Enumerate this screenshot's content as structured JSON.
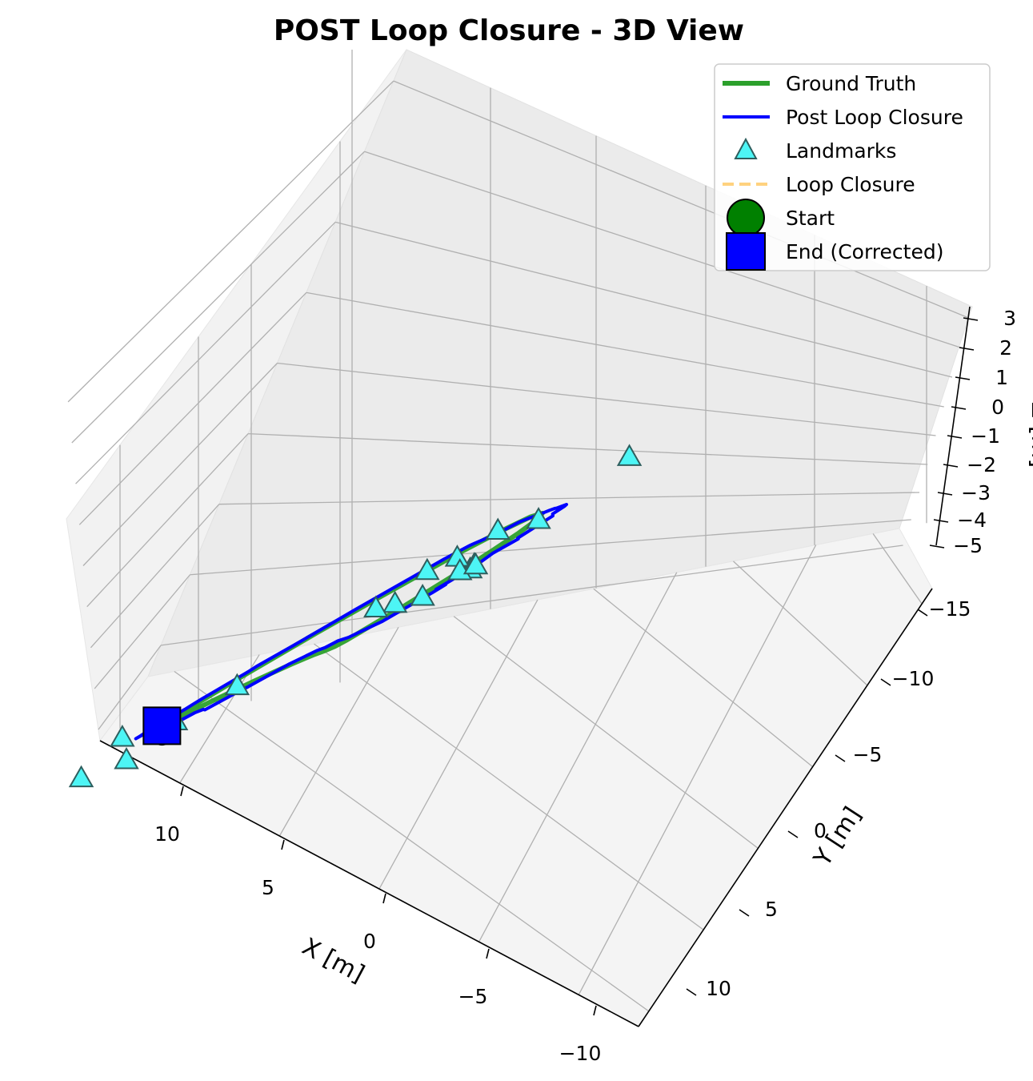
{
  "chart_data": {
    "type": "line",
    "projection": "3d",
    "title": "POST Loop Closure - 3D View",
    "xlabel": "X [m]",
    "ylabel": "Y [m]",
    "zlabel": "Z [m]",
    "x_ticks": [
      "10",
      "5",
      "0",
      "−5",
      "−10"
    ],
    "y_ticks": [
      "−15",
      "−10",
      "−5",
      "0",
      "5",
      "10"
    ],
    "z_ticks": [
      "3",
      "2",
      "1",
      "0",
      "−1",
      "−2",
      "−3",
      "−4",
      "−5"
    ],
    "xlim": [
      14,
      -12
    ],
    "ylim": [
      -17,
      13
    ],
    "zlim": [
      -5,
      3
    ],
    "grid": true,
    "legend_position": "top-right",
    "legend": [
      {
        "label": "Ground Truth",
        "kind": "line",
        "color": "#2ca02c"
      },
      {
        "label": "Post Loop Closure",
        "kind": "line",
        "color": "#0000ff"
      },
      {
        "label": "Landmarks",
        "kind": "triangle",
        "color": "#4df5f5"
      },
      {
        "label": "Loop Closure",
        "kind": "dashed",
        "color": "#ffd27f"
      },
      {
        "label": "Start",
        "kind": "circle",
        "color": "#008000"
      },
      {
        "label": "End (Corrected)",
        "kind": "square",
        "color": "#0000ff"
      }
    ],
    "series": [
      {
        "name": "Ground Truth",
        "color": "#2ca02c",
        "points": [
          [
            6.8,
            -4.3
          ],
          [
            3.6,
            -5.6
          ],
          [
            0.5,
            -7.3
          ],
          [
            -2.5,
            -9.3
          ],
          [
            -4.6,
            -11.0
          ],
          [
            -6.0,
            -12.4
          ],
          [
            -6.9,
            -13.1
          ],
          [
            -7.5,
            -13.1
          ],
          [
            -8.7,
            -10.6
          ],
          [
            -9.3,
            -7.3
          ],
          [
            -9.4,
            -4.2
          ],
          [
            -9.1,
            -1.5
          ],
          [
            -8.4,
            1.3
          ],
          [
            -7.2,
            3.7
          ],
          [
            -5.5,
            5.6
          ],
          [
            -3.6,
            6.6
          ],
          [
            -1.3,
            6.9
          ],
          [
            1.7,
            5.4
          ],
          [
            3.9,
            3.6
          ],
          [
            5.8,
            0.7
          ],
          [
            7.1,
            -2.5
          ],
          [
            7.1,
            -3.4
          ],
          [
            6.8,
            -4.3
          ]
        ]
      },
      {
        "name": "Post Loop Closure",
        "color": "#0000ff",
        "points": [
          [
            7.9,
            -3.5
          ],
          [
            7.5,
            -4.0
          ],
          [
            7.4,
            -4.7
          ],
          [
            6.6,
            -5.0
          ],
          [
            6.7,
            -5.5
          ],
          [
            5.7,
            -6.2
          ],
          [
            5.2,
            -6.1
          ],
          [
            5.4,
            -6.3
          ],
          [
            4.9,
            -6.6
          ],
          [
            5.5,
            -6.6
          ],
          [
            3.9,
            -7.5
          ],
          [
            3.3,
            -7.5
          ],
          [
            2.4,
            -8.3
          ],
          [
            1.8,
            -9.2
          ],
          [
            0.5,
            -8.9
          ],
          [
            -0.3,
            -9.1
          ],
          [
            -1.9,
            -8.4
          ],
          [
            -3.8,
            -9.3
          ],
          [
            -4.7,
            -10.2
          ],
          [
            -5.4,
            -10.3
          ],
          [
            -6.8,
            -11.8
          ],
          [
            -7.8,
            -12.3
          ],
          [
            -9.3,
            -13.2
          ],
          [
            -9.6,
            -12.8
          ],
          [
            -10.8,
            -11.6
          ],
          [
            -11.0,
            -10.8
          ],
          [
            -10.4,
            -10.6
          ],
          [
            -11.2,
            -8.9
          ],
          [
            -10.6,
            -8.3
          ],
          [
            -11.0,
            -7.8
          ],
          [
            -10.6,
            -6.2
          ],
          [
            -11.5,
            -5.6
          ],
          [
            -11.0,
            -4.8
          ],
          [
            -11.2,
            -2.2
          ],
          [
            -10.3,
            -0.7
          ],
          [
            -10.3,
            0.3
          ],
          [
            -10.1,
            0.8
          ],
          [
            -8.9,
            2.0
          ],
          [
            -8.6,
            2.4
          ],
          [
            -7.9,
            3.1
          ],
          [
            -6.9,
            4.0
          ],
          [
            -5.6,
            5.3
          ],
          [
            -4.6,
            6.2
          ],
          [
            -3.4,
            6.3
          ],
          [
            -1.3,
            8.0
          ],
          [
            -1.0,
            8.2
          ],
          [
            0.3,
            8.2
          ],
          [
            1.3,
            7.4
          ],
          [
            2.1,
            6.7
          ],
          [
            3.2,
            5.7
          ],
          [
            3.9,
            4.6
          ],
          [
            4.9,
            3.4
          ],
          [
            6.1,
            2.4
          ],
          [
            6.1,
            1.8
          ],
          [
            6.5,
            1.2
          ],
          [
            7.3,
            -0.1
          ],
          [
            7.4,
            -0.6
          ],
          [
            7.5,
            -1.2
          ],
          [
            8.5,
            -2.5
          ],
          [
            8.4,
            -3.4
          ],
          [
            8.5,
            -3.6
          ],
          [
            8.0,
            -3.5
          ],
          [
            7.9,
            -3.5
          ]
        ]
      }
    ],
    "landmarks": [
      [
        11.8,
        -14.4
      ],
      [
        13.0,
        -13.0
      ],
      [
        12.6,
        -10.3
      ],
      [
        6.7,
        -11.2
      ],
      [
        2.0,
        -15.4
      ],
      [
        5.0,
        -6.2
      ],
      [
        3.1,
        -4.3
      ],
      [
        -9.8,
        -10.7
      ],
      [
        -11.2,
        -9.1
      ],
      [
        -10.4,
        -7.4
      ],
      [
        -5.2,
        -5.2
      ],
      [
        -8.9,
        0.5
      ],
      [
        12.7,
        2.4
      ],
      [
        -2.6,
        4.4
      ],
      [
        0.0,
        6.3
      ],
      [
        -2.3,
        8.3
      ],
      [
        -7.0,
        11.3
      ],
      [
        -1.9,
        -1.2
      ],
      [
        -9.1,
        -6.4
      ],
      [
        -11.0,
        -8.3
      ]
    ],
    "start": [
      6.8,
      -4.3
    ],
    "end": [
      6.8,
      -4.3
    ]
  }
}
